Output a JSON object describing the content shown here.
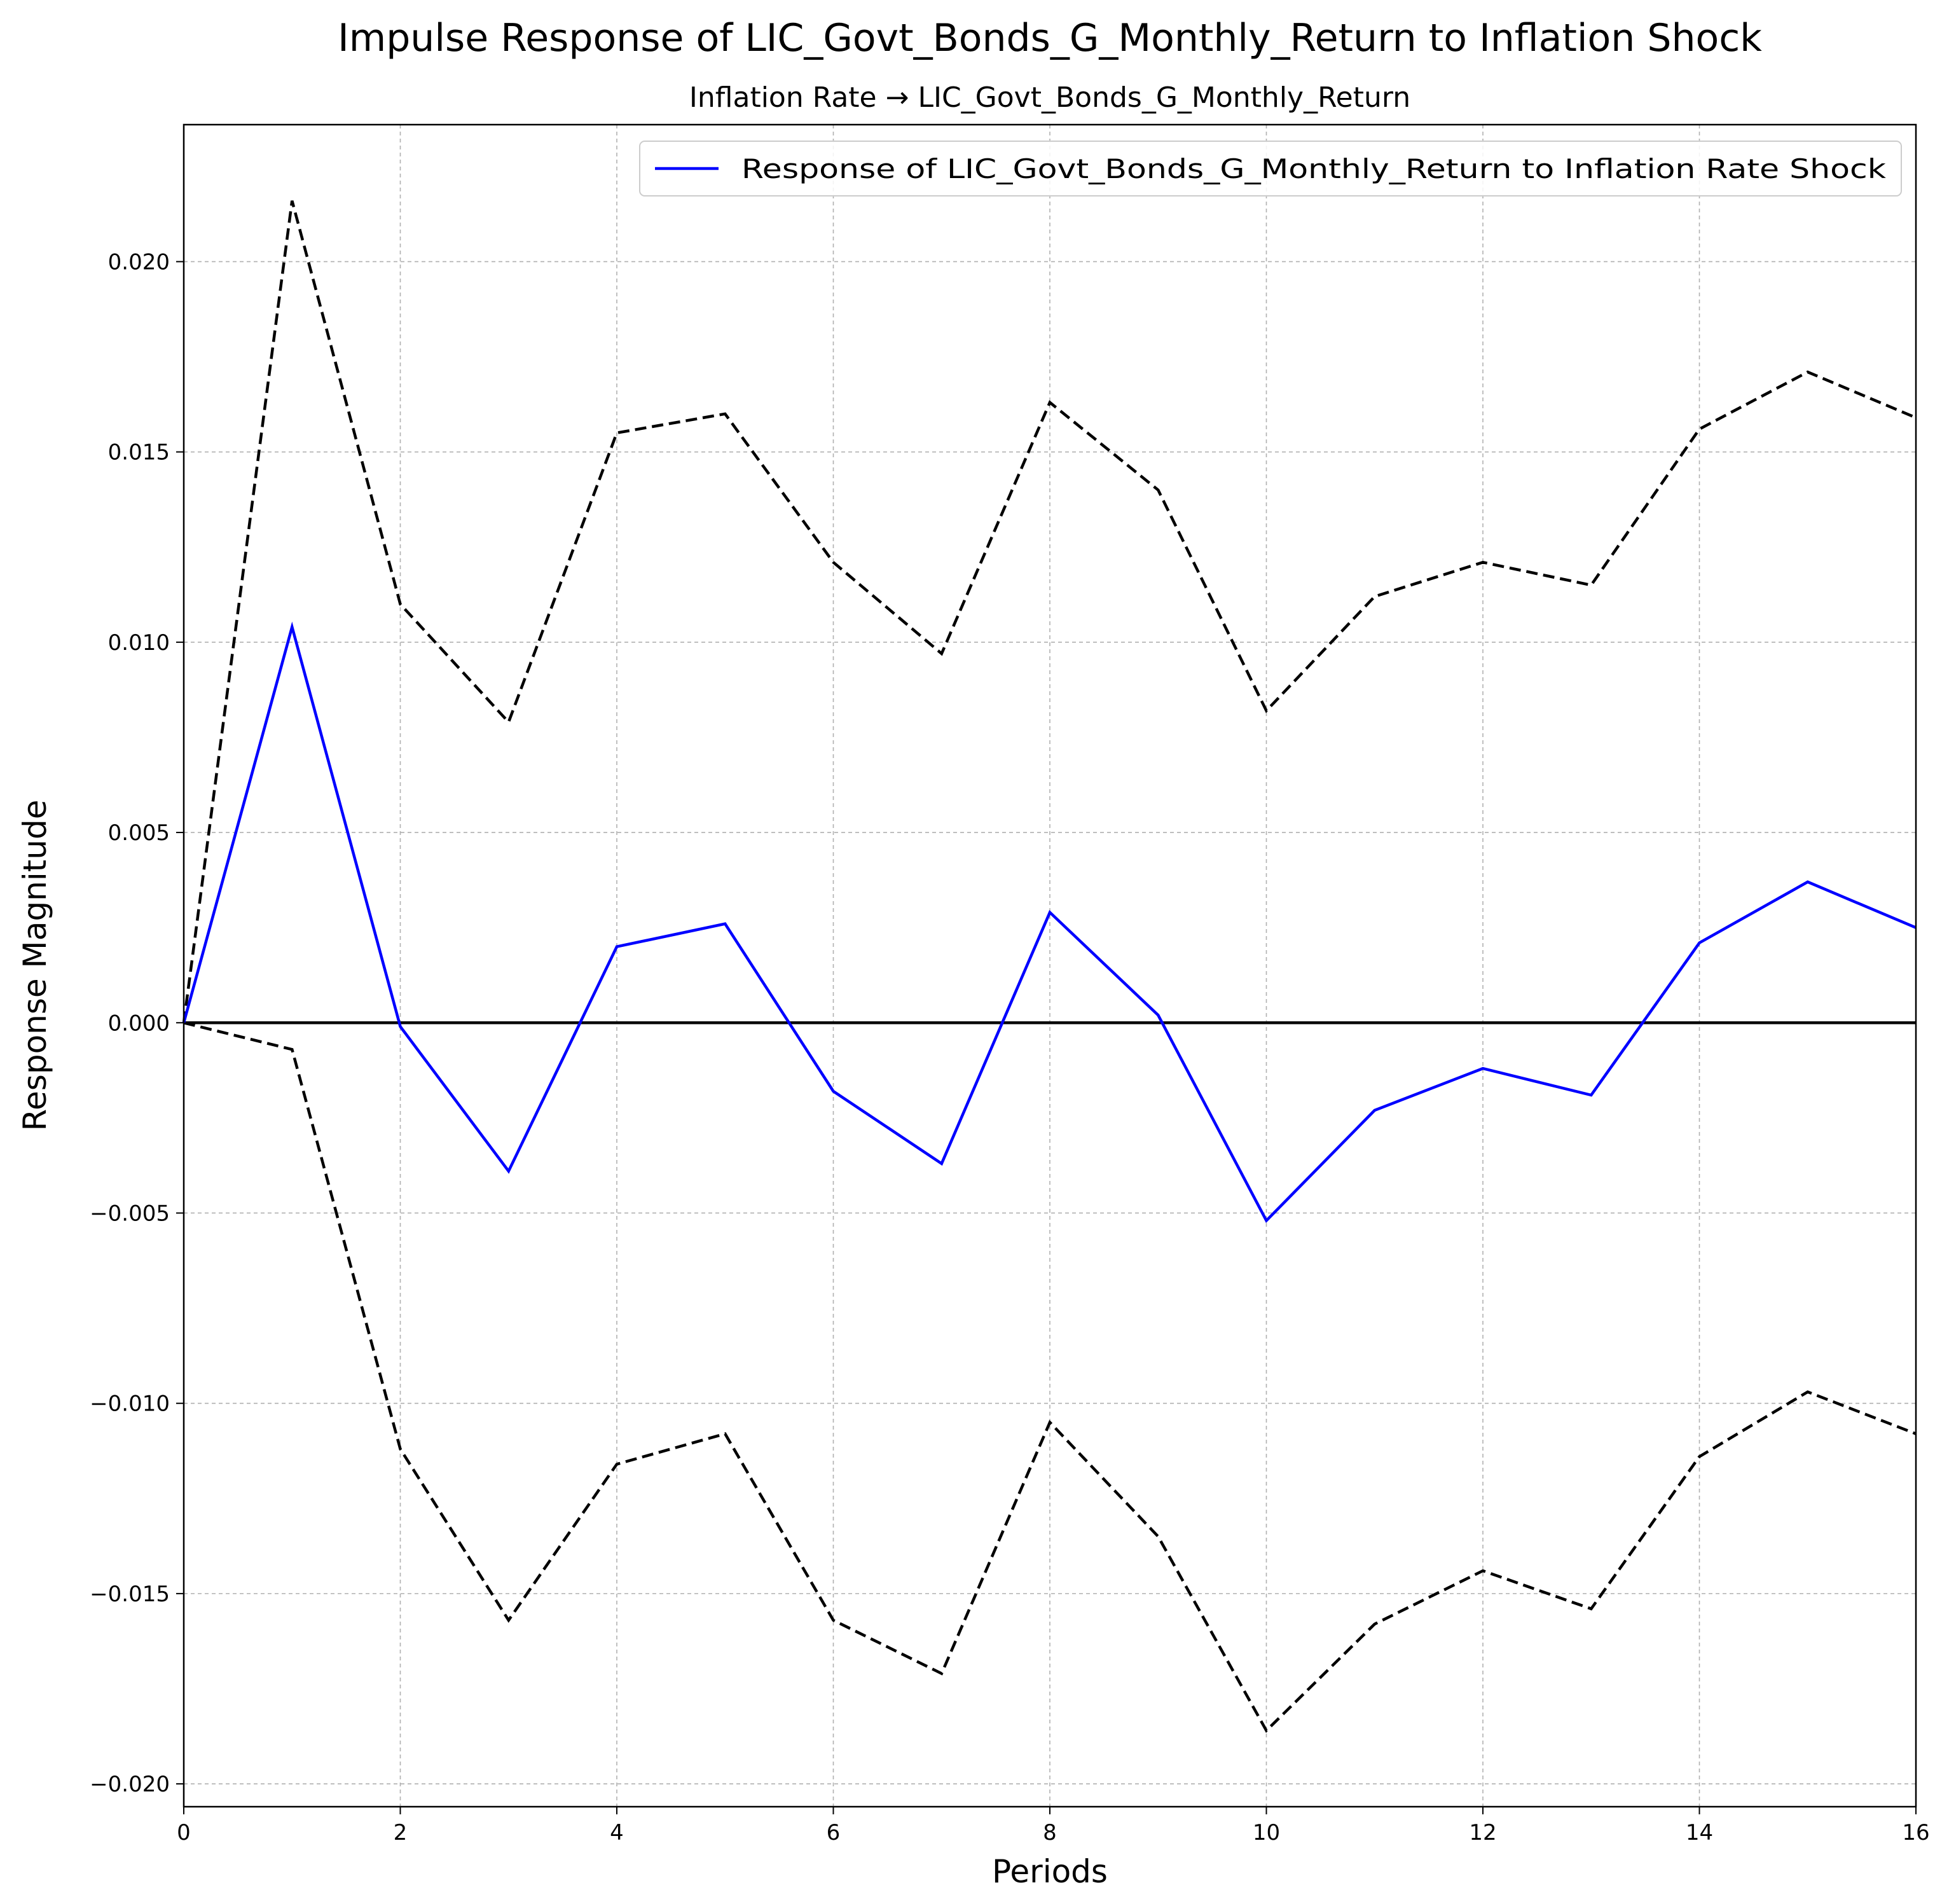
{
  "chart_data": {
    "type": "line",
    "title": "Impulse Response of LIC_Govt_Bonds_G_Monthly_Return to Inflation Shock",
    "subtitle": "Inflation Rate → LIC_Govt_Bonds_G_Monthly_Return",
    "xlabel": "Periods",
    "ylabel": "Response Magnitude",
    "xlim": [
      0,
      16
    ],
    "ylim": [
      -0.0206,
      0.0236
    ],
    "x_ticks": [
      0,
      2,
      4,
      6,
      8,
      10,
      12,
      14,
      16
    ],
    "x_tick_labels": [
      "0",
      "2",
      "4",
      "6",
      "8",
      "10",
      "12",
      "14",
      "16"
    ],
    "y_ticks": [
      0.02,
      0.015,
      0.01,
      0.005,
      0.0,
      -0.005,
      -0.01,
      -0.015,
      -0.02
    ],
    "y_tick_labels": [
      "0.020",
      "0.015",
      "0.010",
      "0.005",
      "0.000",
      "−0.005",
      "−0.010",
      "−0.015",
      "−0.020"
    ],
    "grid": true,
    "legend_position": "top-right",
    "x": [
      0,
      1,
      2,
      3,
      4,
      5,
      6,
      7,
      8,
      9,
      10,
      11,
      12,
      13,
      14,
      15,
      16
    ],
    "series": [
      {
        "name": "Response of LIC_Govt_Bonds_G_Monthly_Return to Inflation Rate Shock",
        "role": "response",
        "color": "#0000ff",
        "style": "solid",
        "values": [
          0.0,
          0.0104,
          -0.0001,
          -0.0039,
          0.002,
          0.0026,
          -0.0018,
          -0.0037,
          0.0029,
          0.0002,
          -0.0052,
          -0.0023,
          -0.0012,
          -0.0019,
          0.0021,
          0.0037,
          0.0025
        ]
      },
      {
        "role": "upper-band",
        "color": "#000000",
        "style": "dashed",
        "values": [
          0.0,
          0.0216,
          0.011,
          0.0079,
          0.0155,
          0.016,
          0.0121,
          0.0097,
          0.0163,
          0.014,
          0.0082,
          0.0112,
          0.0121,
          0.0115,
          0.0156,
          0.0171,
          0.0159
        ]
      },
      {
        "role": "lower-band",
        "color": "#000000",
        "style": "dashed",
        "values": [
          0.0,
          -0.0007,
          -0.0112,
          -0.0157,
          -0.0116,
          -0.0108,
          -0.0157,
          -0.0171,
          -0.0105,
          -0.0135,
          -0.0186,
          -0.0158,
          -0.0144,
          -0.0154,
          -0.0114,
          -0.0097,
          -0.0108
        ]
      }
    ],
    "reference_line": {
      "y": 0.0,
      "color": "#000000"
    }
  }
}
